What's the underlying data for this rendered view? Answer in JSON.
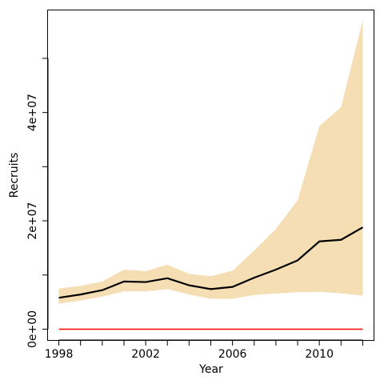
{
  "chart_data": {
    "type": "area",
    "xlabel": "Year",
    "ylabel": "Recruits",
    "xlim": [
      1997.5,
      2012.5
    ],
    "ylim": [
      -2000000,
      59000000
    ],
    "x_ticks": [
      {
        "value": 1998,
        "label": "1998"
      },
      {
        "value": 1999,
        "label": ""
      },
      {
        "value": 2000,
        "label": ""
      },
      {
        "value": 2001,
        "label": ""
      },
      {
        "value": 2002,
        "label": "2002"
      },
      {
        "value": 2003,
        "label": ""
      },
      {
        "value": 2004,
        "label": ""
      },
      {
        "value": 2005,
        "label": ""
      },
      {
        "value": 2006,
        "label": "2006"
      },
      {
        "value": 2007,
        "label": ""
      },
      {
        "value": 2008,
        "label": ""
      },
      {
        "value": 2009,
        "label": ""
      },
      {
        "value": 2010,
        "label": "2010"
      },
      {
        "value": 2011,
        "label": ""
      },
      {
        "value": 2012,
        "label": ""
      }
    ],
    "y_ticks": [
      {
        "value": 0,
        "label": "0e+00"
      },
      {
        "value": 10000000,
        "label": ""
      },
      {
        "value": 20000000,
        "label": "2e+07"
      },
      {
        "value": 30000000,
        "label": ""
      },
      {
        "value": 40000000,
        "label": "4e+07"
      },
      {
        "value": 50000000,
        "label": ""
      }
    ],
    "x": [
      1998,
      1999,
      2000,
      2001,
      2002,
      2003,
      2004,
      2005,
      2006,
      2007,
      2008,
      2009,
      2010,
      2011,
      2012
    ],
    "series": [
      {
        "kind": "band",
        "color": "#f5deb3",
        "lower": [
          4700000,
          5300000,
          6000000,
          7000000,
          7000000,
          7400000,
          6400000,
          5600000,
          5600000,
          6300000,
          6600000,
          6800000,
          6900000,
          6600000,
          6200000
        ],
        "upper": [
          7500000,
          8000000,
          8800000,
          11000000,
          10700000,
          11900000,
          10200000,
          9800000,
          10800000,
          14500000,
          18500000,
          23800000,
          37500000,
          41000000,
          57000000
        ]
      },
      {
        "kind": "line",
        "color": "#000000",
        "values": [
          5800000,
          6400000,
          7200000,
          8800000,
          8700000,
          9400000,
          8100000,
          7400000,
          7800000,
          9500000,
          11000000,
          12700000,
          16200000,
          16500000,
          18800000
        ]
      },
      {
        "kind": "line",
        "color": "#ff0000",
        "values": [
          0,
          0,
          0,
          0,
          0,
          0,
          0,
          0,
          0,
          0,
          0,
          0,
          0,
          0,
          0
        ]
      }
    ],
    "grid": false,
    "legend": "none"
  }
}
